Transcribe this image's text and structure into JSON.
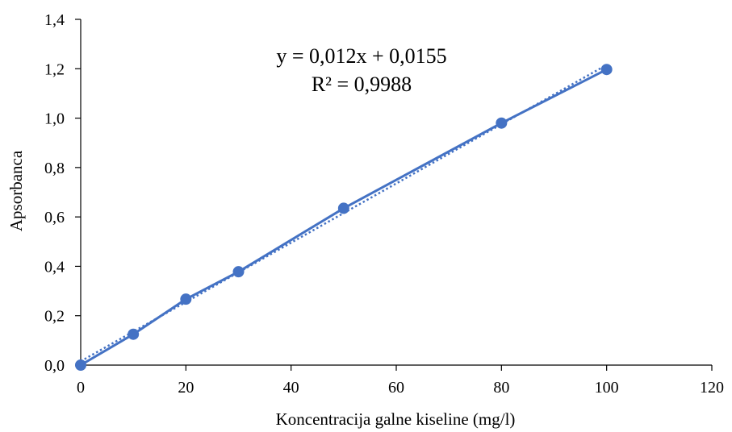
{
  "chart_data": {
    "type": "scatter",
    "title": "",
    "xlabel": "Koncentracija galne kiseline (mg/l)",
    "ylabel": "Apsorbanca",
    "xlim": [
      0,
      120
    ],
    "ylim": [
      0,
      1.4
    ],
    "x_ticks": [
      0,
      20,
      40,
      60,
      80,
      100,
      120
    ],
    "y_ticks": [
      0,
      0.2,
      0.4,
      0.6,
      0.8,
      1.0,
      1.2,
      1.4
    ],
    "x_tick_labels": [
      "0",
      "20",
      "40",
      "60",
      "80",
      "100",
      "120"
    ],
    "y_tick_labels": [
      "0,0",
      "0,2",
      "0,4",
      "0,6",
      "0,8",
      "1,0",
      "1,2",
      "1,4"
    ],
    "grid": false,
    "series": [
      {
        "x": [
          0,
          10,
          20,
          30,
          50,
          80,
          100
        ],
        "y": [
          0.0,
          0.125,
          0.267,
          0.378,
          0.635,
          0.98,
          1.197
        ],
        "color": "#4472C4",
        "marker": "circle",
        "connected": true
      }
    ],
    "trendline": {
      "slope": 0.012,
      "intercept": 0.0155,
      "x_range": [
        0,
        100
      ],
      "style": "dotted",
      "color": "#4472C4"
    },
    "annotations": {
      "equation": "y = 0,012x + 0,0155",
      "r_squared": "R² = 0,9988"
    }
  }
}
